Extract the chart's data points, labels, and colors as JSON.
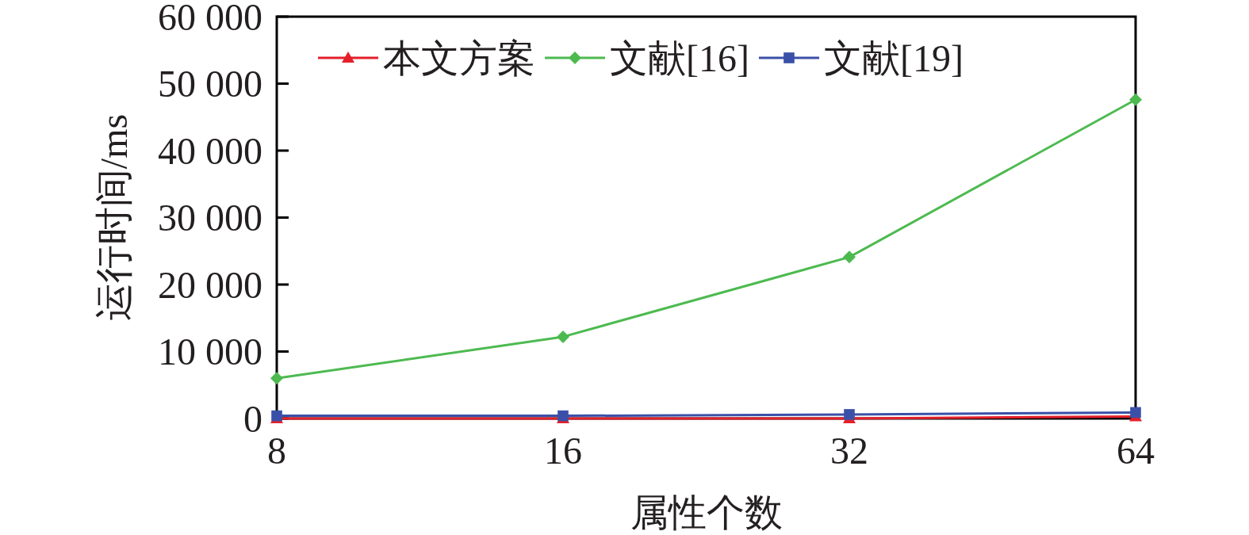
{
  "chart_data": {
    "type": "line",
    "xlabel": "属性个数",
    "ylabel": "运行时间/ms",
    "categories": [
      "8",
      "16",
      "32",
      "64"
    ],
    "ylim": [
      0,
      60000
    ],
    "yticks": [
      0,
      {
        "value": 10000,
        "label": "10 000"
      },
      {
        "value": 20000,
        "label": "20 000"
      },
      {
        "value": 30000,
        "label": "30 000"
      },
      {
        "value": 40000,
        "label": "40 000"
      },
      {
        "value": 50000,
        "label": "50 000"
      },
      {
        "value": 60000,
        "label": "60 000"
      }
    ],
    "legend": "top left",
    "line_style": "solid",
    "series": [
      {
        "name": "本文方案",
        "color": "#e3202a",
        "marker": "triangle",
        "values": [
          0,
          0,
          0,
          300
        ]
      },
      {
        "name": "文献[16]",
        "color": "#4dba50",
        "marker": "diamond",
        "values": [
          6000,
          12200,
          24100,
          47600
        ]
      },
      {
        "name": "文献[19]",
        "color": "#3a50a8",
        "marker": "square",
        "values": [
          400,
          400,
          600,
          900
        ]
      }
    ]
  }
}
